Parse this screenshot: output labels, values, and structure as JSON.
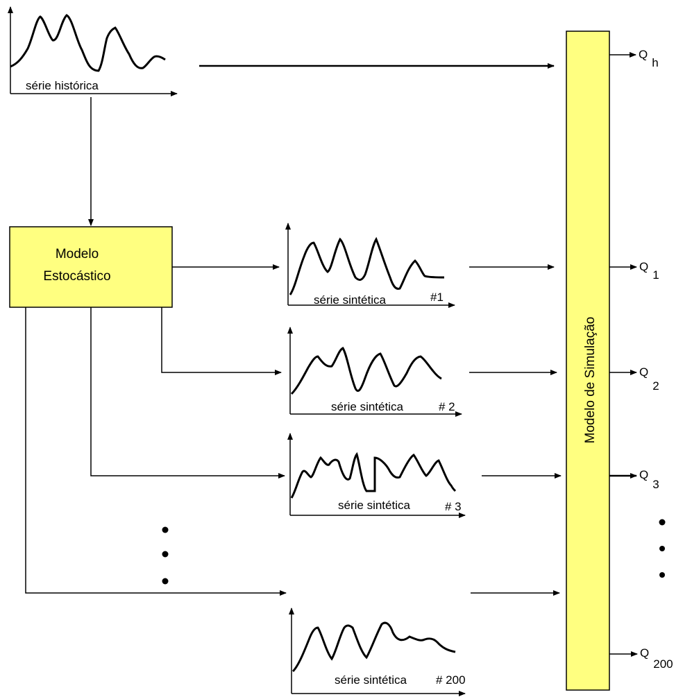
{
  "historical": {
    "label": "série histórica"
  },
  "stochastic_model": {
    "line1": "Modelo",
    "line2": "Estocástico"
  },
  "synthetic": [
    {
      "label": "série sintética",
      "tag": "#1"
    },
    {
      "label": "série sintética",
      "tag": "# 2"
    },
    {
      "label": "série sintética",
      "tag": "# 3"
    },
    {
      "label": "série sintética",
      "tag": "# 200"
    }
  ],
  "simulation_model": {
    "label": "Modelo de Simulação"
  },
  "outputs": [
    {
      "base": "Q",
      "sub": "h"
    },
    {
      "base": "Q",
      "sub": "1"
    },
    {
      "base": "Q",
      "sub": "2"
    },
    {
      "base": "Q",
      "sub": "3"
    },
    {
      "base": "Q",
      "sub": "200"
    }
  ],
  "colors": {
    "box_fill": "#FFFF80",
    "box_stroke": "#000000",
    "line": "#000000"
  }
}
